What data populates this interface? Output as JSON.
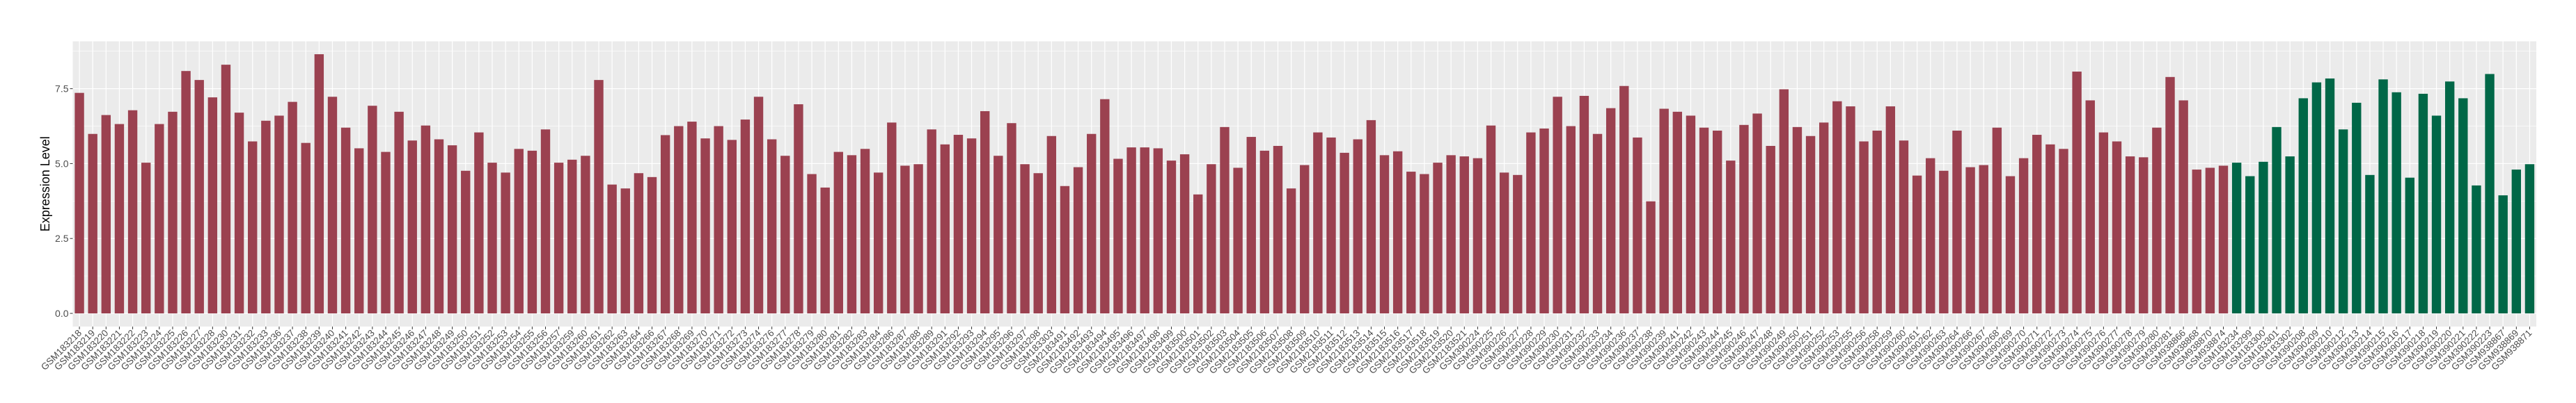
{
  "chart_data": {
    "type": "bar",
    "title": "",
    "xlabel": "",
    "ylabel": "Expression Level",
    "ylim": [
      -0.44,
      9.08
    ],
    "yticks": [
      0.0,
      2.5,
      5.0,
      7.5
    ],
    "ytick_labels": [
      "0.0",
      "2.5",
      "5.0",
      "7.5"
    ],
    "grid": true,
    "legend": "none",
    "panel_background": "#EBEBEB",
    "grid_color": "#FFFFFF",
    "series": [
      {
        "color": "#9B4150",
        "categories": [
          "GSM183218",
          "GSM183219",
          "GSM183220",
          "GSM183221",
          "GSM183222",
          "GSM183223",
          "GSM183224",
          "GSM183225",
          "GSM183226",
          "GSM183227",
          "GSM183228",
          "GSM183230",
          "GSM183231",
          "GSM183232",
          "GSM183233",
          "GSM183236",
          "GSM183237",
          "GSM183238",
          "GSM183239",
          "GSM183240",
          "GSM183241",
          "GSM183242",
          "GSM183243",
          "GSM183244",
          "GSM183245",
          "GSM183246",
          "GSM183247",
          "GSM183248",
          "GSM183249",
          "GSM183250",
          "GSM183251",
          "GSM183252",
          "GSM183253",
          "GSM183254",
          "GSM183255",
          "GSM183256",
          "GSM183257",
          "GSM183259",
          "GSM183260",
          "GSM183261",
          "GSM183262",
          "GSM183263",
          "GSM183264",
          "GSM183266",
          "GSM183267",
          "GSM183268",
          "GSM183269",
          "GSM183270",
          "GSM183271",
          "GSM183272",
          "GSM183273",
          "GSM183274",
          "GSM183276",
          "GSM183277",
          "GSM183278",
          "GSM183279",
          "GSM183280",
          "GSM183281",
          "GSM183282",
          "GSM183283",
          "GSM183284",
          "GSM183286",
          "GSM183287",
          "GSM183288",
          "GSM183289",
          "GSM183291",
          "GSM183292",
          "GSM183293",
          "GSM183294",
          "GSM183295",
          "GSM183296",
          "GSM183297",
          "GSM183298",
          "GSM183303",
          "GSM2183491",
          "GSM2183492",
          "GSM2183493",
          "GSM2183494",
          "GSM2183495",
          "GSM2183496",
          "GSM2183497",
          "GSM2183498",
          "GSM2183499",
          "GSM2183500",
          "GSM2183501",
          "GSM2183502",
          "GSM2183503",
          "GSM2183504",
          "GSM2183505",
          "GSM2183506",
          "GSM2183507",
          "GSM2183508",
          "GSM2183509",
          "GSM2183510",
          "GSM2183511",
          "GSM2183512",
          "GSM2183513",
          "GSM2183514",
          "GSM2183515",
          "GSM2183516",
          "GSM2183517",
          "GSM2183518",
          "GSM2183519",
          "GSM2183520",
          "GSM2183521",
          "GSM390224",
          "GSM390225",
          "GSM390226",
          "GSM390227",
          "GSM390228",
          "GSM390229",
          "GSM390230",
          "GSM390231",
          "GSM390232",
          "GSM390233",
          "GSM390234",
          "GSM390236",
          "GSM390237",
          "GSM390238",
          "GSM390239",
          "GSM390241",
          "GSM390242",
          "GSM390243",
          "GSM390244",
          "GSM390245",
          "GSM390246",
          "GSM390247",
          "GSM390248",
          "GSM390249",
          "GSM390250",
          "GSM390251",
          "GSM390252",
          "GSM390253",
          "GSM390255",
          "GSM390256",
          "GSM390258",
          "GSM390259",
          "GSM390260",
          "GSM390261",
          "GSM390262",
          "GSM390263",
          "GSM390264",
          "GSM390266",
          "GSM390267",
          "GSM390268",
          "GSM390269",
          "GSM390270",
          "GSM390271",
          "GSM390272",
          "GSM390273",
          "GSM390274",
          "GSM390275",
          "GSM390276",
          "GSM390277",
          "GSM390278",
          "GSM390279",
          "GSM390280",
          "GSM390281",
          "GSM938866",
          "GSM938868",
          "GSM938870",
          "GSM938874"
        ],
        "values": [
          7.36,
          5.99,
          6.62,
          6.32,
          6.78,
          5.03,
          6.32,
          6.73,
          8.09,
          7.79,
          7.21,
          8.3,
          6.7,
          5.74,
          6.43,
          6.6,
          7.06,
          5.69,
          8.65,
          7.23,
          6.2,
          5.51,
          6.93,
          5.39,
          6.73,
          5.77,
          6.27,
          5.81,
          5.61,
          4.76,
          6.04,
          5.03,
          4.7,
          5.49,
          5.43,
          6.14,
          5.03,
          5.13,
          5.26,
          7.79,
          4.3,
          4.17,
          4.68,
          4.55,
          5.95,
          6.25,
          6.4,
          5.84,
          6.25,
          5.79,
          6.47,
          7.23,
          5.81,
          5.26,
          6.98,
          4.65,
          4.2,
          5.39,
          5.28,
          5.49,
          4.7,
          6.37,
          4.93,
          4.98,
          6.14,
          5.64,
          5.96,
          5.84,
          6.75,
          5.26,
          6.35,
          4.98,
          4.68,
          5.92,
          4.25,
          4.88,
          5.99,
          7.15,
          5.16,
          5.54,
          5.54,
          5.51,
          5.1,
          5.31,
          3.97,
          4.98,
          6.22,
          4.86,
          5.89,
          5.43,
          5.59,
          4.17,
          4.95,
          6.04,
          5.87,
          5.36,
          5.81,
          6.45,
          5.28,
          5.41,
          4.73,
          4.65,
          5.03,
          5.28,
          5.24,
          5.18,
          6.27,
          4.7,
          4.62,
          6.04,
          6.17,
          7.23,
          6.25,
          7.26,
          5.99,
          6.85,
          7.59,
          5.87,
          3.74,
          6.83,
          6.73,
          6.6,
          6.2,
          6.1,
          5.1,
          6.29,
          6.67,
          5.59,
          7.48,
          6.22,
          5.92,
          6.37,
          7.08,
          6.91,
          5.74,
          6.1,
          6.91,
          5.77,
          4.6,
          5.18,
          4.76,
          6.1,
          4.88,
          4.95,
          6.2,
          4.58,
          5.18,
          5.96,
          5.64,
          5.49,
          8.07,
          7.11,
          6.04,
          5.74,
          5.24,
          5.21,
          6.2,
          7.89,
          7.11,
          4.8,
          4.86,
          4.93
        ]
      },
      {
        "color": "#006747",
        "categories": [
          "GSM183234",
          "GSM183299",
          "GSM183300",
          "GSM183301",
          "GSM183302",
          "GSM390208",
          "GSM390209",
          "GSM390210",
          "GSM390212",
          "GSM390213",
          "GSM390214",
          "GSM390215",
          "GSM390216",
          "GSM390217",
          "GSM390218",
          "GSM390219",
          "GSM390220",
          "GSM390221",
          "GSM390222",
          "GSM390223",
          "GSM938867",
          "GSM938869",
          "GSM938871"
        ],
        "values": [
          5.03,
          4.58,
          5.06,
          6.22,
          5.24,
          7.18,
          7.71,
          7.84,
          6.14,
          7.03,
          4.62,
          7.81,
          7.38,
          4.53,
          7.33,
          6.6,
          7.74,
          7.18,
          4.27,
          7.99,
          3.94,
          4.8,
          4.98
        ]
      }
    ]
  }
}
